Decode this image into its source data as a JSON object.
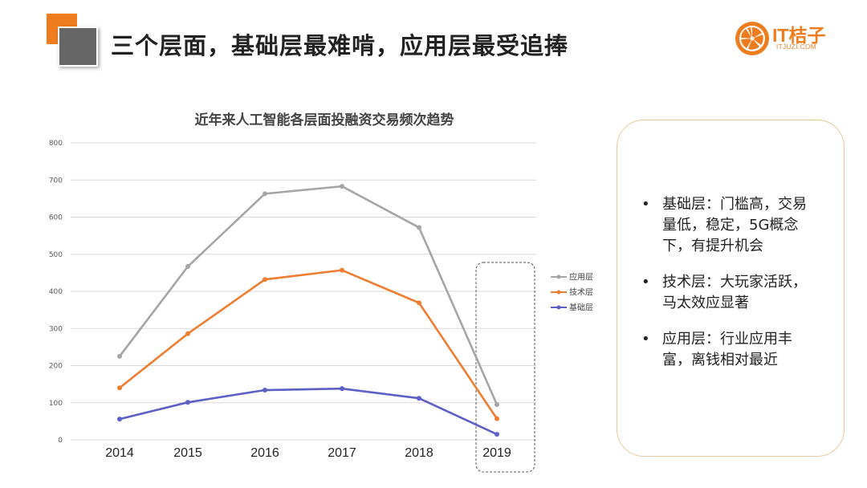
{
  "slide": {
    "title": "三个层面，基础层最难啃，应用层最受追捧"
  },
  "logo": {
    "name": "IT桔子",
    "sub": "ITJUZI.COM",
    "color": "#ee7d1f"
  },
  "chart_data": {
    "type": "line",
    "title": "近年来人工智能各层面投融资交易频次趋势",
    "categories": [
      "2014",
      "2015",
      "2016",
      "2017",
      "2018",
      "2019"
    ],
    "ylim": [
      0,
      800
    ],
    "yticks": [
      0,
      100,
      200,
      300,
      400,
      500,
      600,
      700,
      800
    ],
    "grid": true,
    "legend_position": "right",
    "highlight_category": "2019",
    "series": [
      {
        "name": "应用层",
        "color": "#a5a5a5",
        "values": [
          225,
          467,
          663,
          683,
          572,
          95
        ]
      },
      {
        "name": "技术层",
        "color": "#ed7d31",
        "values": [
          140,
          286,
          432,
          457,
          369,
          57
        ]
      },
      {
        "name": "基础层",
        "color": "#5b5fc7",
        "values": [
          56,
          101,
          134,
          138,
          112,
          15
        ]
      }
    ]
  },
  "notes": {
    "items": [
      {
        "bullet": "•",
        "text": "基础层：门槛高，交易量低，稳定，5G概念下，有提升机会"
      },
      {
        "bullet": "•",
        "text": "技术层：大玩家活跃，马太效应显著"
      },
      {
        "bullet": "•",
        "text": "应用层：行业应用丰富，离钱相对最近"
      }
    ]
  }
}
